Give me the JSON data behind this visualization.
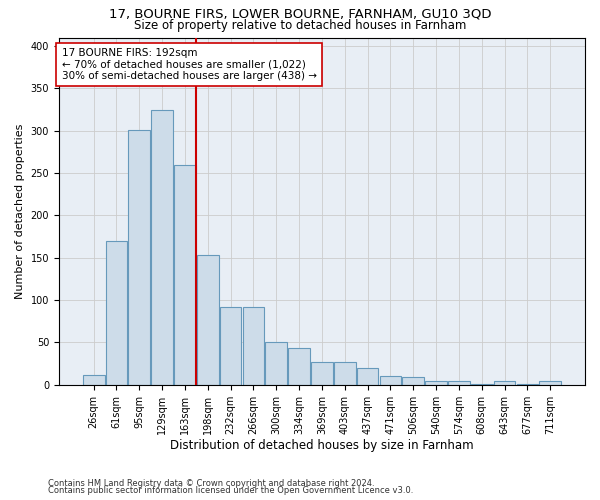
{
  "title1": "17, BOURNE FIRS, LOWER BOURNE, FARNHAM, GU10 3QD",
  "title2": "Size of property relative to detached houses in Farnham",
  "xlabel": "Distribution of detached houses by size in Farnham",
  "ylabel": "Number of detached properties",
  "footnote1": "Contains HM Land Registry data © Crown copyright and database right 2024.",
  "footnote2": "Contains public sector information licensed under the Open Government Licence v3.0.",
  "bin_labels": [
    "26sqm",
    "61sqm",
    "95sqm",
    "129sqm",
    "163sqm",
    "198sqm",
    "232sqm",
    "266sqm",
    "300sqm",
    "334sqm",
    "369sqm",
    "403sqm",
    "437sqm",
    "471sqm",
    "506sqm",
    "540sqm",
    "574sqm",
    "608sqm",
    "643sqm",
    "677sqm",
    "711sqm"
  ],
  "bar_heights": [
    12,
    170,
    301,
    325,
    260,
    153,
    92,
    92,
    50,
    44,
    27,
    27,
    20,
    10,
    9,
    4,
    4,
    1,
    4,
    1,
    4
  ],
  "bar_color": "#cddce9",
  "bar_edge_color": "#6699bb",
  "vline_bin_index": 5,
  "vline_color": "#cc0000",
  "annotation_line1": "17 BOURNE FIRS: 192sqm",
  "annotation_line2": "← 70% of detached houses are smaller (1,022)",
  "annotation_line3": "30% of semi-detached houses are larger (438) →",
  "annotation_box_color": "white",
  "annotation_box_edge": "#cc0000",
  "ylim": [
    0,
    410
  ],
  "yticks": [
    0,
    50,
    100,
    150,
    200,
    250,
    300,
    350,
    400
  ],
  "grid_color": "#cccccc",
  "bg_color": "#e8eef5",
  "title1_fontsize": 9.5,
  "title2_fontsize": 8.5,
  "xlabel_fontsize": 8.5,
  "ylabel_fontsize": 8,
  "tick_fontsize": 7,
  "annotation_fontsize": 7.5,
  "footnote_fontsize": 6
}
